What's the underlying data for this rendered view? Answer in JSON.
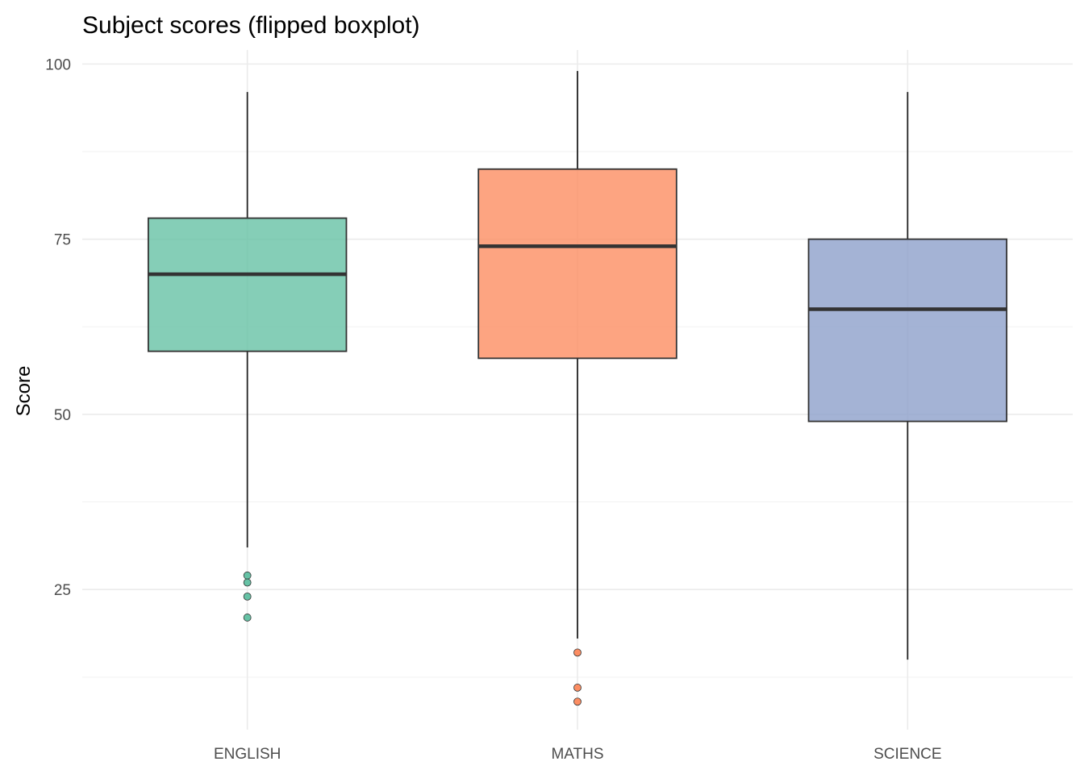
{
  "chart_data": {
    "type": "boxplot",
    "title": "Subject scores (flipped boxplot)",
    "xlabel": "",
    "ylabel": "Score",
    "ylim": [
      5,
      102
    ],
    "yticks": [
      25,
      50,
      75,
      100
    ],
    "yticks_minor": [
      12.5,
      37.5,
      62.5,
      87.5
    ],
    "grid": true,
    "legend": "none",
    "categories": [
      "ENGLISH",
      "MATHS",
      "SCIENCE"
    ],
    "boxes": [
      {
        "category": "ENGLISH",
        "color": "#66c2a5",
        "whisker_low": 31,
        "q1": 59,
        "median": 70,
        "q3": 78,
        "whisker_high": 96,
        "outliers": [
          27,
          26,
          24,
          21
        ]
      },
      {
        "category": "MATHS",
        "color": "#fc8d62",
        "whisker_low": 18,
        "q1": 58,
        "median": 74,
        "q3": 85,
        "whisker_high": 99,
        "outliers": [
          16,
          11,
          9
        ]
      },
      {
        "category": "SCIENCE",
        "color": "#8da0cb",
        "whisker_low": 15,
        "q1": 49,
        "median": 65,
        "q3": 75,
        "whisker_high": 96,
        "outliers": []
      }
    ]
  }
}
